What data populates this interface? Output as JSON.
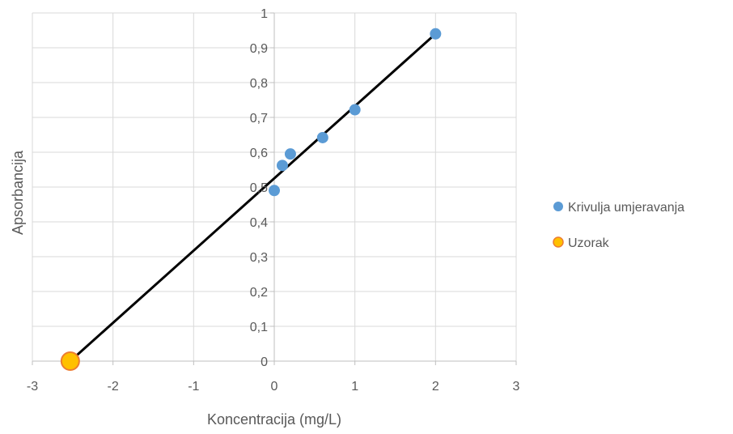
{
  "chart_data": {
    "type": "scatter",
    "title": "",
    "xlabel": "Koncentracija (mg/L)",
    "ylabel": "Apsorbancija",
    "xlim": [
      -3,
      3
    ],
    "ylim": [
      0,
      1
    ],
    "x_ticks": [
      "-3",
      "-2",
      "-1",
      "0",
      "1",
      "2",
      "3"
    ],
    "y_ticks": [
      "0",
      "0,1",
      "0,2",
      "0,3",
      "0,4",
      "0,5",
      "0,6",
      "0,7",
      "0,8",
      "0,9",
      "1"
    ],
    "grid": true,
    "legend_position": "right",
    "series": [
      {
        "name": "Krivulja umjeravanja",
        "color": "#5B9BD5",
        "points": [
          {
            "x": 0,
            "y": 0.49
          },
          {
            "x": 0.1,
            "y": 0.562
          },
          {
            "x": 0.2,
            "y": 0.595
          },
          {
            "x": 0.6,
            "y": 0.642
          },
          {
            "x": 1.0,
            "y": 0.722
          },
          {
            "x": 2.0,
            "y": 0.94
          }
        ]
      },
      {
        "name": "Uzorak",
        "color": "#FFC000",
        "stroke": "#ED7D31",
        "points": [
          {
            "x": -2.53,
            "y": 0.0
          }
        ]
      }
    ],
    "trendline": {
      "color": "#000000",
      "from": {
        "x": -2.53,
        "y": 0.0
      },
      "to": {
        "x": 2.0,
        "y": 0.94
      }
    }
  }
}
